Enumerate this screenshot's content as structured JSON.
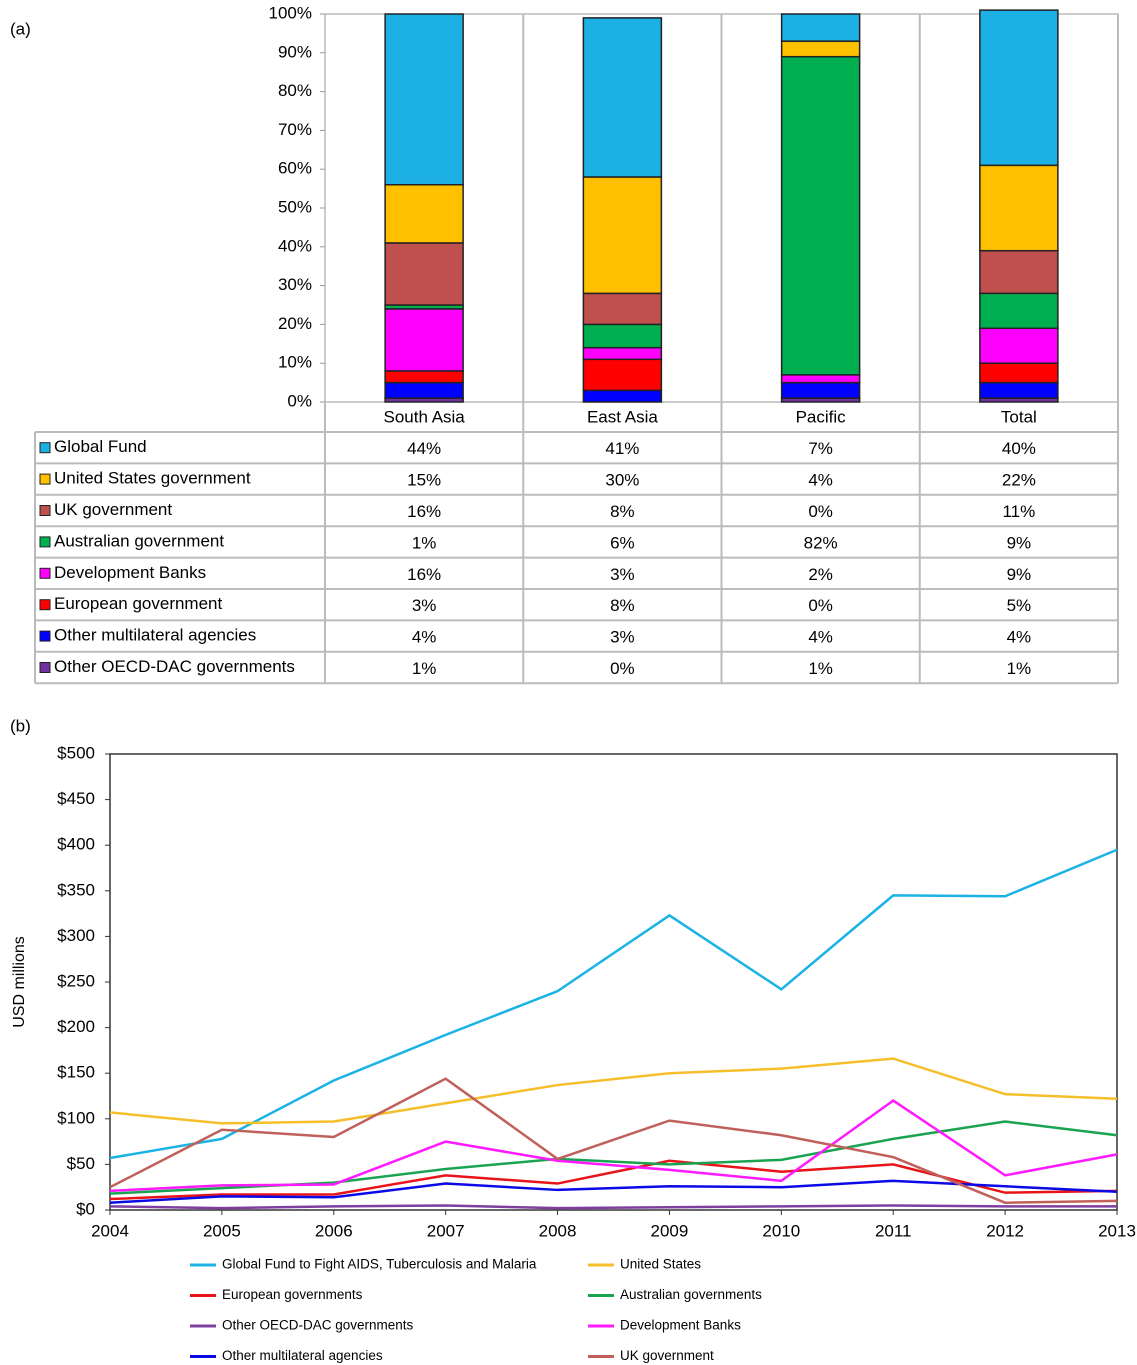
{
  "chart_data": [
    {
      "type": "bar",
      "stacked": true,
      "panel_label": "(a)",
      "categories": [
        "South Asia",
        "East Asia",
        "Pacific",
        "Total"
      ],
      "ylim": [
        0,
        100
      ],
      "yticks": [
        {
          "value": 0,
          "label": "0%"
        },
        {
          "value": 10,
          "label": "10%"
        },
        {
          "value": 20,
          "label": "20%"
        },
        {
          "value": 30,
          "label": "30%"
        },
        {
          "value": 40,
          "label": "40%"
        },
        {
          "value": 50,
          "label": "50%"
        },
        {
          "value": 60,
          "label": "60%"
        },
        {
          "value": 70,
          "label": "70%"
        },
        {
          "value": 80,
          "label": "80%"
        },
        {
          "value": 90,
          "label": "90%"
        },
        {
          "value": 100,
          "label": "100%"
        }
      ],
      "series": [
        {
          "name": "Global Fund",
          "color": "#1cb0e4",
          "values": [
            44,
            41,
            7,
            40
          ],
          "value_labels": [
            "44%",
            "41%",
            "7%",
            "40%"
          ]
        },
        {
          "name": "United States government",
          "color": "#ffc000",
          "values": [
            15,
            30,
            4,
            22
          ],
          "value_labels": [
            "15%",
            "30%",
            "4%",
            "22%"
          ]
        },
        {
          "name": "UK government",
          "color": "#c0504d",
          "values": [
            16,
            8,
            0,
            11
          ],
          "value_labels": [
            "16%",
            "8%",
            "0%",
            "11%"
          ]
        },
        {
          "name": "Australian government",
          "color": "#00b050",
          "values": [
            1,
            6,
            82,
            9
          ],
          "value_labels": [
            "1%",
            "6%",
            "82%",
            "9%"
          ]
        },
        {
          "name": "Development Banks",
          "color": "#ff00ff",
          "values": [
            16,
            3,
            2,
            9
          ],
          "value_labels": [
            "16%",
            "3%",
            "2%",
            "9%"
          ]
        },
        {
          "name": "European government",
          "color": "#ff0000",
          "values": [
            3,
            8,
            0,
            5
          ],
          "value_labels": [
            "3%",
            "8%",
            "0%",
            "5%"
          ]
        },
        {
          "name": "Other multilateral agencies",
          "color": "#0000ff",
          "values": [
            4,
            3,
            4,
            4
          ],
          "value_labels": [
            "4%",
            "3%",
            "4%",
            "4%"
          ]
        },
        {
          "name": "Other OECD-DAC governments",
          "color": "#7030a0",
          "values": [
            1,
            0,
            1,
            1
          ],
          "value_labels": [
            "1%",
            "0%",
            "1%",
            "1%"
          ]
        }
      ]
    },
    {
      "type": "line",
      "panel_label": "(b)",
      "ylabel": "USD millions",
      "grid": false,
      "x": [
        2004,
        2005,
        2006,
        2007,
        2008,
        2009,
        2010,
        2011,
        2012,
        2013
      ],
      "xlim": [
        2004,
        2013
      ],
      "xticks": [
        2004,
        2005,
        2006,
        2007,
        2008,
        2009,
        2010,
        2011,
        2012,
        2013
      ],
      "ylim": [
        0,
        500
      ],
      "yticks": [
        {
          "value": 0,
          "label": "$0"
        },
        {
          "value": 50,
          "label": "$50"
        },
        {
          "value": 100,
          "label": "$100"
        },
        {
          "value": 150,
          "label": "$150"
        },
        {
          "value": 200,
          "label": "$200"
        },
        {
          "value": 250,
          "label": "$250"
        },
        {
          "value": 300,
          "label": "$300"
        },
        {
          "value": 350,
          "label": "$350"
        },
        {
          "value": 400,
          "label": "$400"
        },
        {
          "value": 450,
          "label": "$450"
        },
        {
          "value": 500,
          "label": "$500"
        }
      ],
      "series": [
        {
          "name": "Global Fund to Fight AIDS, Tuberculosis and Malaria",
          "color": "#1bb3e6",
          "values": [
            57,
            78,
            142,
            192,
            240,
            323,
            242,
            345,
            344,
            395
          ]
        },
        {
          "name": "United States",
          "color": "#f5be2b",
          "values": [
            107,
            95,
            97,
            117,
            137,
            150,
            155,
            166,
            127,
            122
          ]
        },
        {
          "name": "European governments",
          "color": "#e8141a",
          "values": [
            12,
            17,
            17,
            38,
            29,
            54,
            42,
            50,
            19,
            21
          ]
        },
        {
          "name": "Australian governments",
          "color": "#1aa350",
          "values": [
            18,
            24,
            30,
            45,
            56,
            50,
            55,
            78,
            97,
            82
          ]
        },
        {
          "name": "Other OECD-DAC governments",
          "color": "#7e3fa0",
          "values": [
            4,
            2,
            4,
            5,
            2,
            3,
            4,
            5,
            4,
            4
          ]
        },
        {
          "name": "Development Banks",
          "color": "#ff1aff",
          "values": [
            21,
            27,
            28,
            75,
            54,
            44,
            32,
            120,
            38,
            61
          ]
        },
        {
          "name": "Other multilateral agencies",
          "color": "#0a0ae6",
          "values": [
            8,
            15,
            14,
            29,
            22,
            26,
            25,
            32,
            26,
            20
          ]
        },
        {
          "name": "UK government",
          "color": "#c0605a",
          "values": [
            25,
            88,
            80,
            144,
            56,
            98,
            82,
            58,
            8,
            10
          ]
        }
      ]
    }
  ]
}
